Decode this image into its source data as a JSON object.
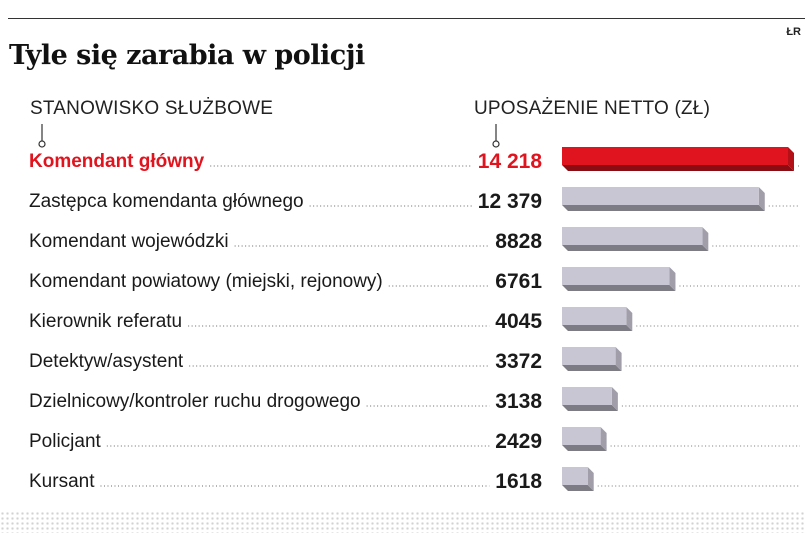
{
  "credit": "ŁR",
  "title": "Tyle się zarabia w policji",
  "headers": {
    "position": "STANOWISKO SŁUŻBOWE",
    "salary": "UPOSAŻENIE NETTO (ZŁ)"
  },
  "colors": {
    "highlight": "#e0141e",
    "bar": "#c9c6d4",
    "text": "#1a1a1a"
  },
  "chart_data": {
    "type": "bar",
    "orientation": "horizontal",
    "title": "Tyle się zarabia w policji",
    "xlabel": "UPOSAŻENIE NETTO (ZŁ)",
    "ylabel": "STANOWISKO SŁUŻBOWE",
    "xlim": [
      0,
      14218
    ],
    "highlight_index": 0,
    "categories": [
      "Komendant główny",
      "Zastępca komendanta głównego",
      "Komendant wojewódzki",
      "Komendant powiatowy (miejski, rejonowy)",
      "Kierownik referatu",
      "Detektyw/asystent",
      "Dzielnicowy/kontroler ruchu drogowego",
      "Policjant",
      "Kursant"
    ],
    "values": [
      14218,
      12379,
      8828,
      6761,
      4045,
      3372,
      3138,
      2429,
      1618
    ],
    "value_labels": [
      "14 218",
      "12 379",
      "8828",
      "6761",
      "4045",
      "3372",
      "3138",
      "2429",
      "1618"
    ]
  }
}
